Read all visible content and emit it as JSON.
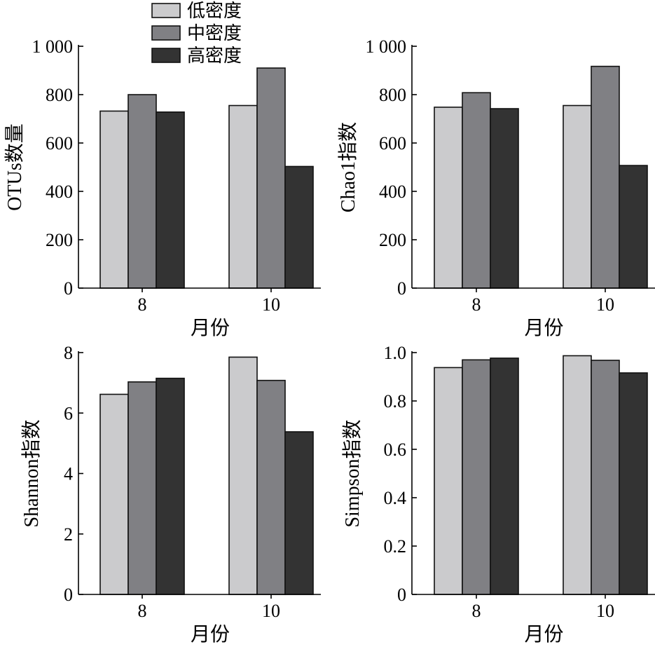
{
  "legend": {
    "placement": "top-center",
    "items": [
      {
        "label": "低密度",
        "color": "#cbcbcd"
      },
      {
        "label": "中密度",
        "color": "#808084"
      },
      {
        "label": "高密度",
        "color": "#333333"
      }
    ]
  },
  "colors": {
    "axis": "#000000",
    "bar_edge": "#111111"
  },
  "chart_data": [
    {
      "type": "bar",
      "ylabel": "OTUs数量",
      "xlabel": "月份",
      "categories": [
        "8",
        "10"
      ],
      "series": [
        {
          "name": "低密度",
          "values": [
            732,
            755
          ]
        },
        {
          "name": "中密度",
          "values": [
            800,
            910
          ]
        },
        {
          "name": "高密度",
          "values": [
            728,
            503
          ]
        }
      ],
      "ylim": [
        0,
        1000
      ],
      "yticks": [
        0,
        200,
        400,
        600,
        800,
        1000
      ],
      "ytick_labels": [
        "0",
        "200",
        "400",
        "600",
        "800",
        "1 000"
      ]
    },
    {
      "type": "bar",
      "ylabel": "Chao1指数",
      "xlabel": "月份",
      "categories": [
        "8",
        "10"
      ],
      "series": [
        {
          "name": "低密度",
          "values": [
            748,
            755
          ]
        },
        {
          "name": "中密度",
          "values": [
            808,
            917
          ]
        },
        {
          "name": "高密度",
          "values": [
            742,
            507
          ]
        }
      ],
      "ylim": [
        0,
        1000
      ],
      "yticks": [
        0,
        200,
        400,
        600,
        800,
        1000
      ],
      "ytick_labels": [
        "0",
        "200",
        "400",
        "600",
        "800",
        "1 000"
      ]
    },
    {
      "type": "bar",
      "ylabel": "Shannon指数",
      "xlabel": "月份",
      "categories": [
        "8",
        "10"
      ],
      "series": [
        {
          "name": "低密度",
          "values": [
            6.62,
            7.85
          ]
        },
        {
          "name": "中密度",
          "values": [
            7.03,
            7.08
          ]
        },
        {
          "name": "高密度",
          "values": [
            7.15,
            5.38
          ]
        }
      ],
      "ylim": [
        0,
        8
      ],
      "yticks": [
        0,
        2,
        4,
        6,
        8
      ],
      "ytick_labels": [
        "0",
        "2",
        "4",
        "6",
        "8"
      ]
    },
    {
      "type": "bar",
      "ylabel": "Simpson指数",
      "xlabel": "月份",
      "categories": [
        "8",
        "10"
      ],
      "series": [
        {
          "name": "低密度",
          "values": [
            0.938,
            0.987
          ]
        },
        {
          "name": "中密度",
          "values": [
            0.97,
            0.968
          ]
        },
        {
          "name": "高密度",
          "values": [
            0.977,
            0.916
          ]
        }
      ],
      "ylim": [
        0,
        1.0
      ],
      "yticks": [
        0,
        0.2,
        0.4,
        0.6,
        0.8,
        1.0
      ],
      "ytick_labels": [
        "0",
        "0.2",
        "0.4",
        "0.6",
        "0.8",
        "1.0"
      ]
    }
  ]
}
